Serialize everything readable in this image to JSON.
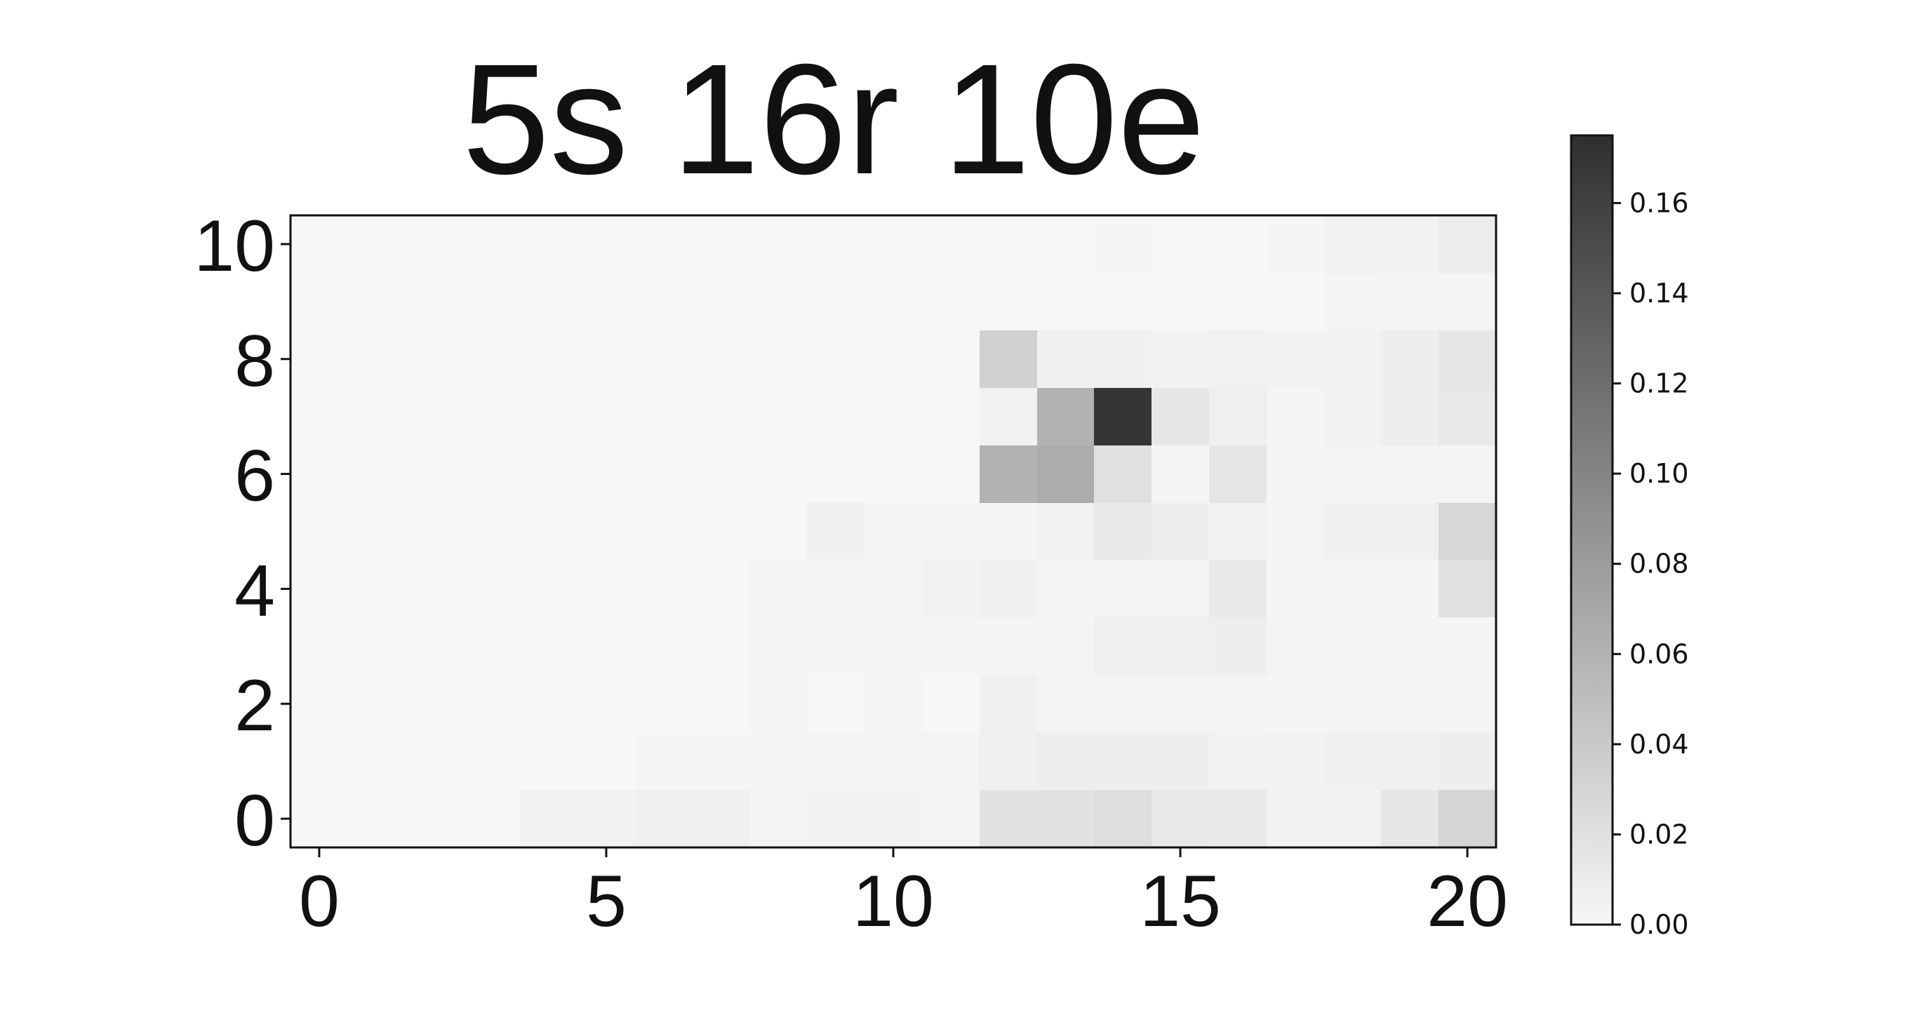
{
  "chart_data": {
    "type": "heatmap",
    "title": "5s 16r 10e",
    "xlabel": "",
    "ylabel": "",
    "xlim": [
      -0.5,
      20.5
    ],
    "ylim": [
      -0.5,
      10.5
    ],
    "x_ticks": [
      "0",
      "5",
      "10",
      "15",
      "20"
    ],
    "y_ticks": [
      "0",
      "2",
      "4",
      "6",
      "8",
      "10"
    ],
    "colormap": "Greys",
    "color_min": "#f7f7f7",
    "color_max": "#2f2f2f",
    "vmin": 0.0,
    "vmax": 0.175,
    "colorbar_ticks": [
      "0.00",
      "0.02",
      "0.04",
      "0.06",
      "0.08",
      "0.10",
      "0.12",
      "0.14",
      "0.16"
    ],
    "z": [
      [
        0,
        0,
        0,
        0,
        0.004,
        0.004,
        0.006,
        0.006,
        0.003,
        0.004,
        0.004,
        0.003,
        0.018,
        0.018,
        0.022,
        0.013,
        0.012,
        0.004,
        0.004,
        0.014,
        0.03
      ],
      [
        0,
        0,
        0,
        0,
        0,
        0,
        0.002,
        0.002,
        0.002,
        0.003,
        0.003,
        0.003,
        0.006,
        0.008,
        0.008,
        0.008,
        0.004,
        0.004,
        0.006,
        0.006,
        0.008
      ],
      [
        0,
        0,
        0,
        0,
        0,
        0,
        0,
        0,
        0.003,
        0,
        0.003,
        0,
        0.006,
        0.003,
        0.003,
        0.003,
        0.003,
        0.002,
        0.002,
        0.002,
        0.002
      ],
      [
        0,
        0,
        0,
        0,
        0,
        0,
        0,
        0,
        0.002,
        0.002,
        0.002,
        0.002,
        0.002,
        0.003,
        0.006,
        0.006,
        0.008,
        0.003,
        0.003,
        0.002,
        0.002
      ],
      [
        0,
        0,
        0,
        0,
        0,
        0,
        0,
        0,
        0.002,
        0.002,
        0.002,
        0.004,
        0.006,
        0.003,
        0.003,
        0.003,
        0.012,
        0.002,
        0.002,
        0.002,
        0.02
      ],
      [
        0,
        0,
        0,
        0,
        0,
        0,
        0,
        0,
        0,
        0.006,
        0.002,
        0.002,
        0.003,
        0.004,
        0.012,
        0.008,
        0.004,
        0.003,
        0.006,
        0.006,
        0.028
      ],
      [
        0,
        0,
        0,
        0,
        0,
        0,
        0,
        0,
        0,
        0,
        0,
        0,
        0.06,
        0.066,
        0.02,
        0.002,
        0.016,
        0.002,
        0.002,
        0.003,
        0.003
      ],
      [
        0,
        0,
        0,
        0,
        0,
        0,
        0,
        0,
        0,
        0,
        0,
        0,
        0.005,
        0.06,
        0.17,
        0.014,
        0.007,
        0.002,
        0.004,
        0.008,
        0.013
      ],
      [
        0,
        0,
        0,
        0,
        0,
        0,
        0,
        0,
        0,
        0,
        0,
        0,
        0.033,
        0.006,
        0.006,
        0.004,
        0.005,
        0.004,
        0.004,
        0.008,
        0.015
      ],
      [
        0,
        0,
        0,
        0,
        0,
        0,
        0,
        0,
        0,
        0,
        0,
        0,
        0,
        0,
        0,
        0,
        0,
        0,
        0.002,
        0.003,
        0.003
      ],
      [
        0,
        0,
        0,
        0,
        0,
        0,
        0,
        0,
        0,
        0,
        0,
        0,
        0,
        0,
        0.002,
        0,
        0,
        0.002,
        0.004,
        0.004,
        0.01
      ]
    ]
  }
}
